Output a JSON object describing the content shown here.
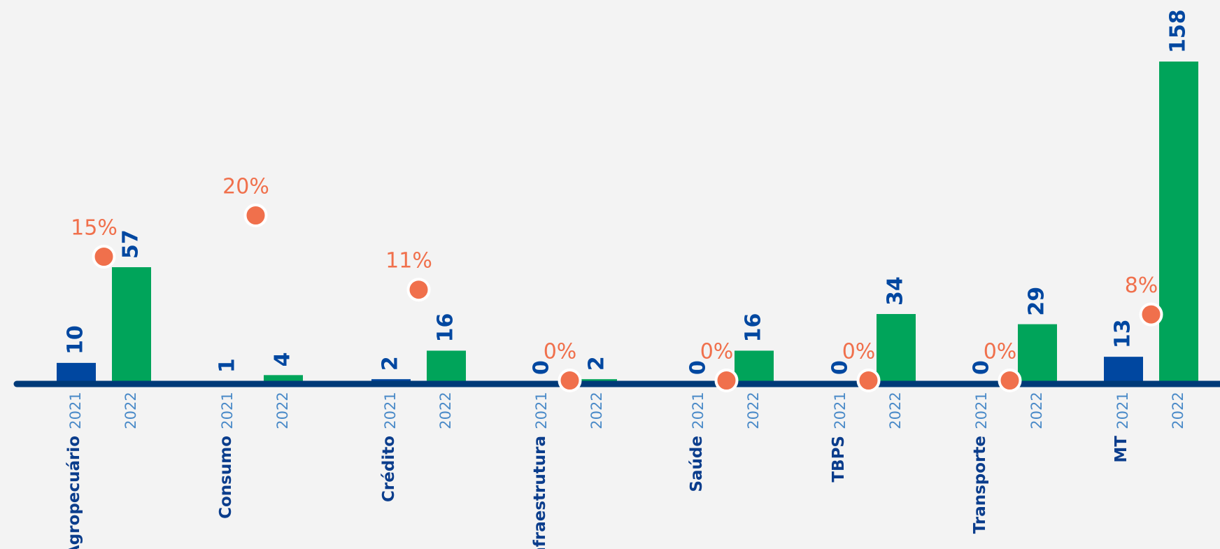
{
  "chart_data": {
    "type": "bar",
    "categories": [
      "Agropecuário",
      "Consumo",
      "Crédito",
      "Infraestrutura",
      "Saúde",
      "TBPS",
      "Transporte",
      "MT"
    ],
    "series": [
      {
        "name": "2021",
        "color": "#0047a0",
        "values": [
          10,
          1,
          2,
          0,
          0,
          0,
          0,
          13
        ]
      },
      {
        "name": "2022",
        "color": "#00a45a",
        "values": [
          57,
          4,
          16,
          2,
          16,
          34,
          29,
          158
        ]
      }
    ],
    "rates": {
      "color": "#f0704c",
      "values": [
        15,
        20,
        11,
        0,
        0,
        0,
        0,
        8
      ],
      "value_labels": [
        "15%",
        "20%",
        "11%",
        "0%",
        "0%",
        "0%",
        "0%",
        "8%"
      ]
    }
  }
}
